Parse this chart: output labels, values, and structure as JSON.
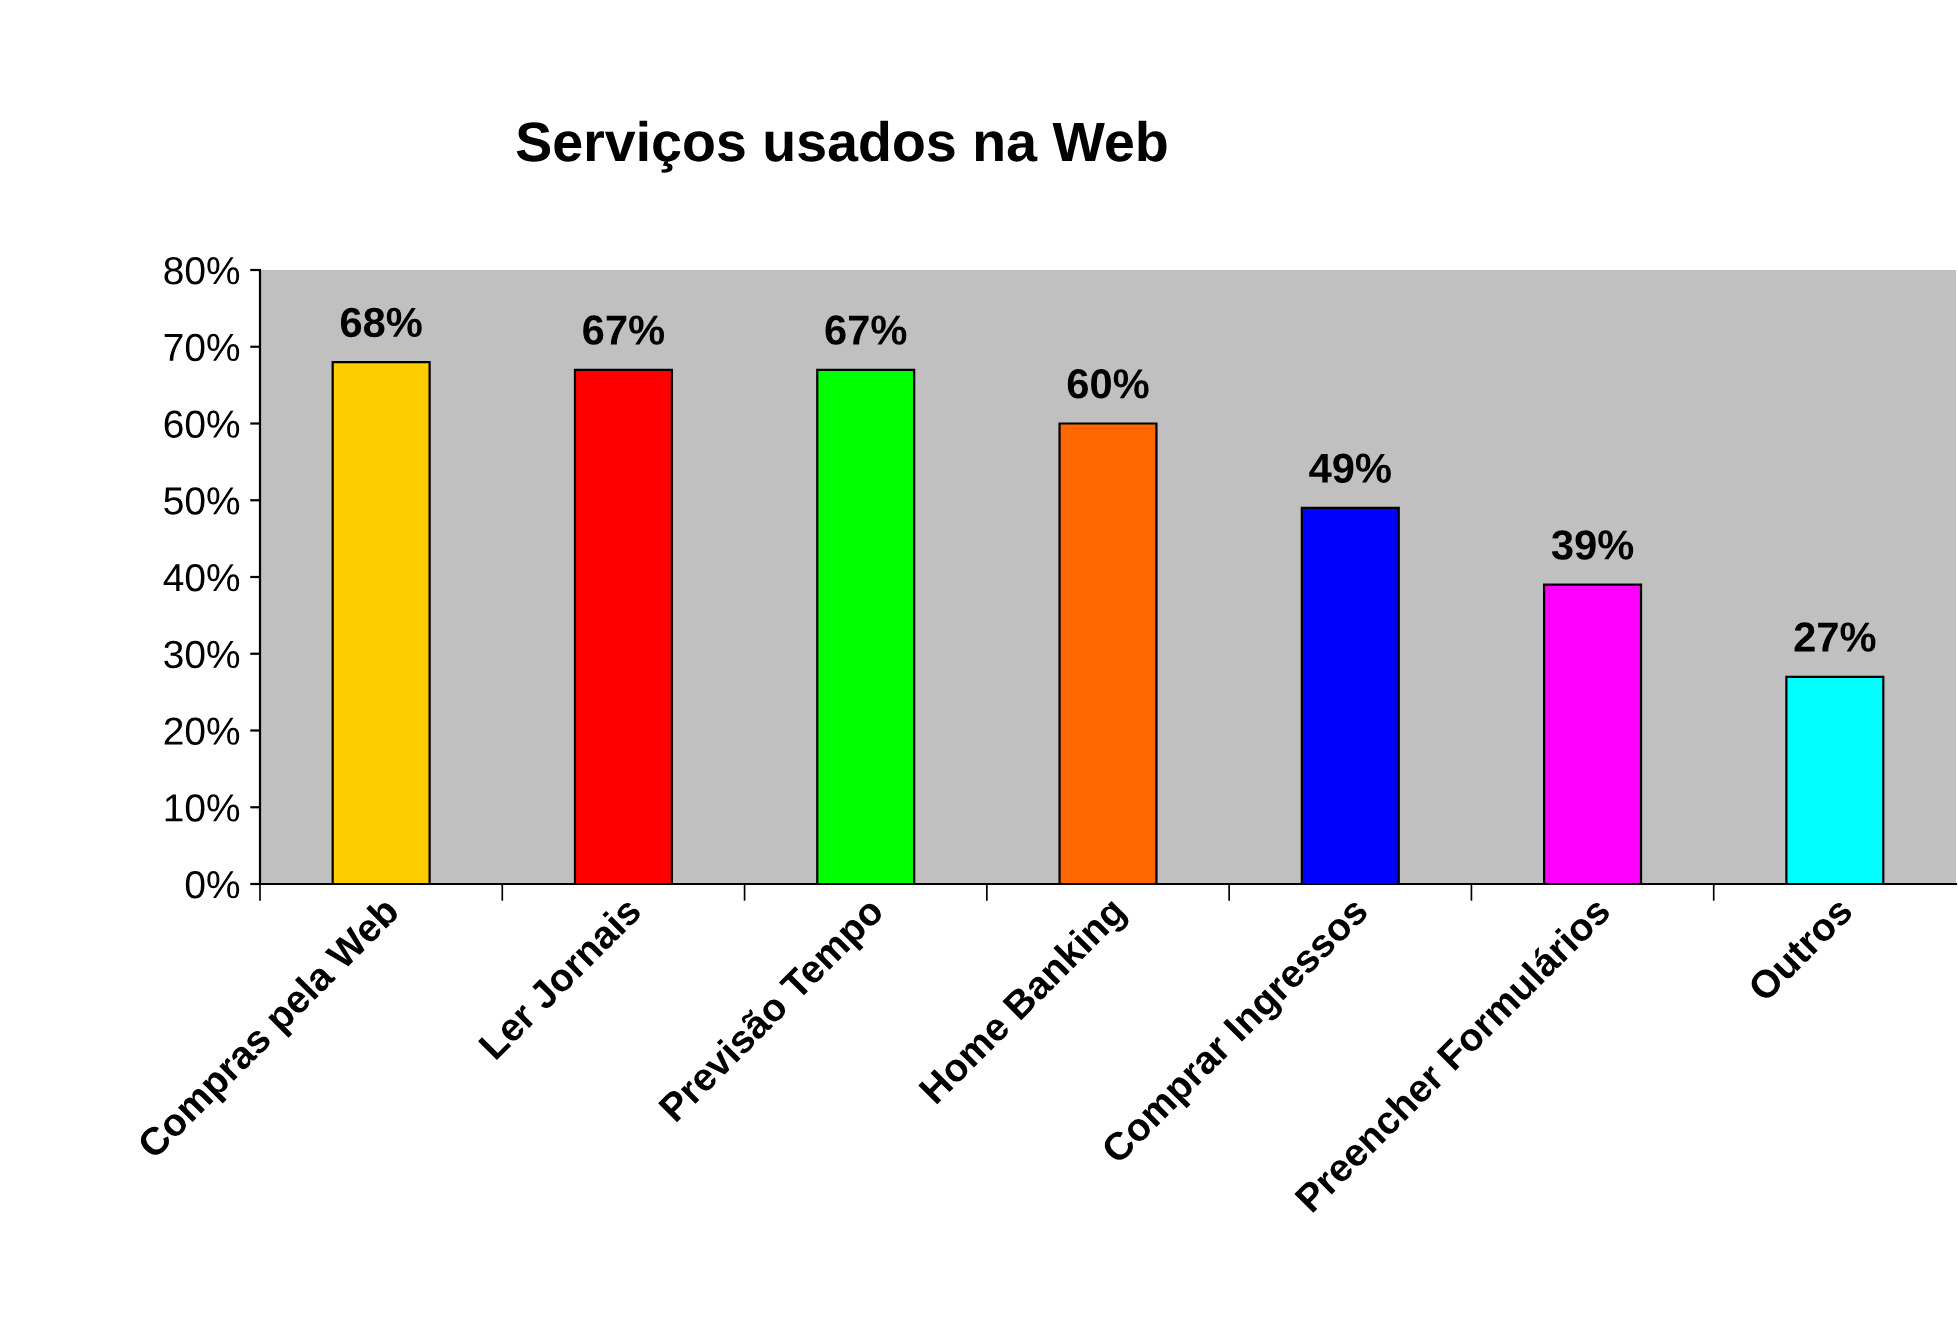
{
  "chart_data": {
    "type": "bar",
    "title": "Serviços usados na Web",
    "categories": [
      "Compras pela Web",
      "Ler Jornais",
      "Previsão Tempo",
      "Home Banking",
      "Comprar Ingressos",
      "Preencher Formulários",
      "Outros"
    ],
    "values": [
      68,
      67,
      67,
      60,
      49,
      39,
      27
    ],
    "colors": [
      "#ffcc00",
      "#ff0000",
      "#00ff00",
      "#ff6600",
      "#0000ff",
      "#ff00ff",
      "#00ffff"
    ],
    "ylim": [
      0,
      80
    ],
    "yticks": [
      {
        "value": 0,
        "label": "0%"
      },
      {
        "value": 10,
        "label": "10%"
      },
      {
        "value": 20,
        "label": "20%"
      },
      {
        "value": 30,
        "label": "30%"
      },
      {
        "value": 40,
        "label": "40%"
      },
      {
        "value": 50,
        "label": "50%"
      },
      {
        "value": 60,
        "label": "60%"
      },
      {
        "value": 70,
        "label": "70%"
      },
      {
        "value": 80,
        "label": "80%"
      }
    ],
    "value_labels": [
      "68%",
      "67%",
      "67%",
      "60%",
      "49%",
      "39%",
      "27%"
    ],
    "grid": false,
    "legend": false
  }
}
